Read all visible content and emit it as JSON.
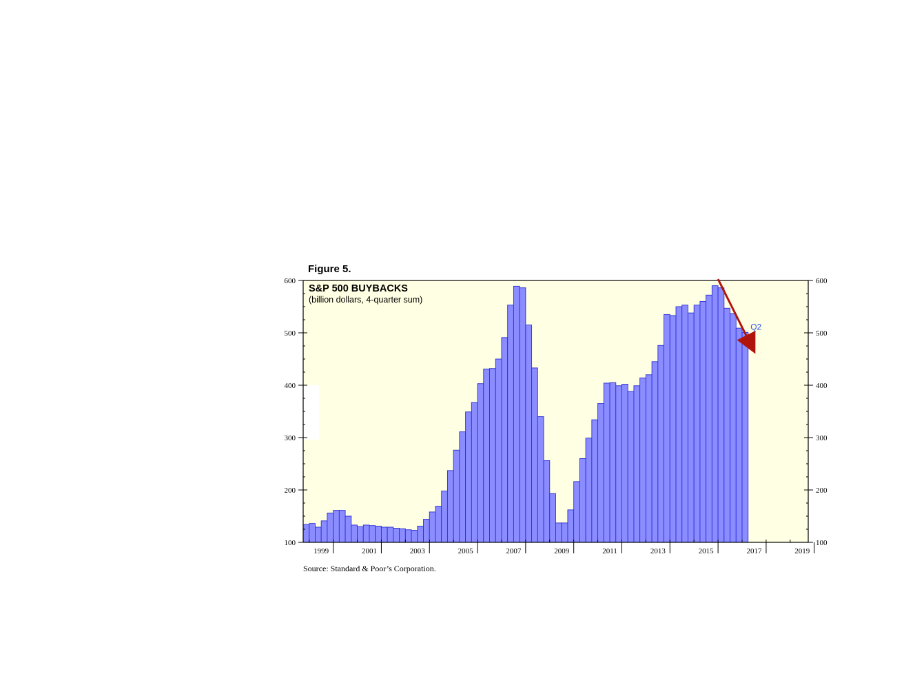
{
  "figure_label": "Figure 5.",
  "source": "Source: Standard & Poor’s Corporation.",
  "colors": {
    "plot_background": "#ffffe3",
    "bar_fill": "#8a8cff",
    "bar_stroke": "#2b2fd6",
    "arrow": "#b0150d",
    "annotation_text": "#2f52e6"
  },
  "chart_data": {
    "type": "bar",
    "title": "S&P 500 BUYBACKS",
    "subtitle": "(billion dollars, 4-quarter sum)",
    "x_start": 1998.75,
    "x_end": 2019.75,
    "ylim": [
      100,
      600
    ],
    "y_ticks": [
      100,
      200,
      300,
      400,
      500,
      600
    ],
    "x_tick_labels": [
      "1999",
      "2001",
      "2003",
      "2005",
      "2007",
      "2009",
      "2011",
      "2013",
      "2015",
      "2017",
      "2019"
    ],
    "x_tick_years": [
      1999,
      2001,
      2003,
      2005,
      2007,
      2009,
      2011,
      2013,
      2015,
      2017,
      2019
    ],
    "bar_start": 1998.75,
    "bar_width": 0.25,
    "values": [
      134,
      136,
      129,
      141,
      156,
      161,
      161,
      150,
      133,
      130,
      133,
      132,
      131,
      129,
      129,
      127,
      126,
      124,
      123,
      131,
      144,
      158,
      169,
      198,
      237,
      276,
      311,
      349,
      367,
      403,
      431,
      432,
      450,
      491,
      553,
      589,
      586,
      515,
      433,
      340,
      256,
      193,
      137,
      137,
      162,
      216,
      260,
      299,
      334,
      365,
      404,
      405,
      399,
      402,
      388,
      399,
      414,
      420,
      445,
      476,
      535,
      533,
      550,
      553,
      538,
      553,
      560,
      572,
      590,
      586,
      547,
      537,
      509,
      501
    ],
    "grid": false,
    "annotations": [
      {
        "text": "Q2",
        "x": 2017.35,
        "y": 506
      }
    ],
    "trend_arrow": {
      "from": [
        2016.0,
        600
      ],
      "to": [
        2017.4,
        474
      ]
    }
  }
}
